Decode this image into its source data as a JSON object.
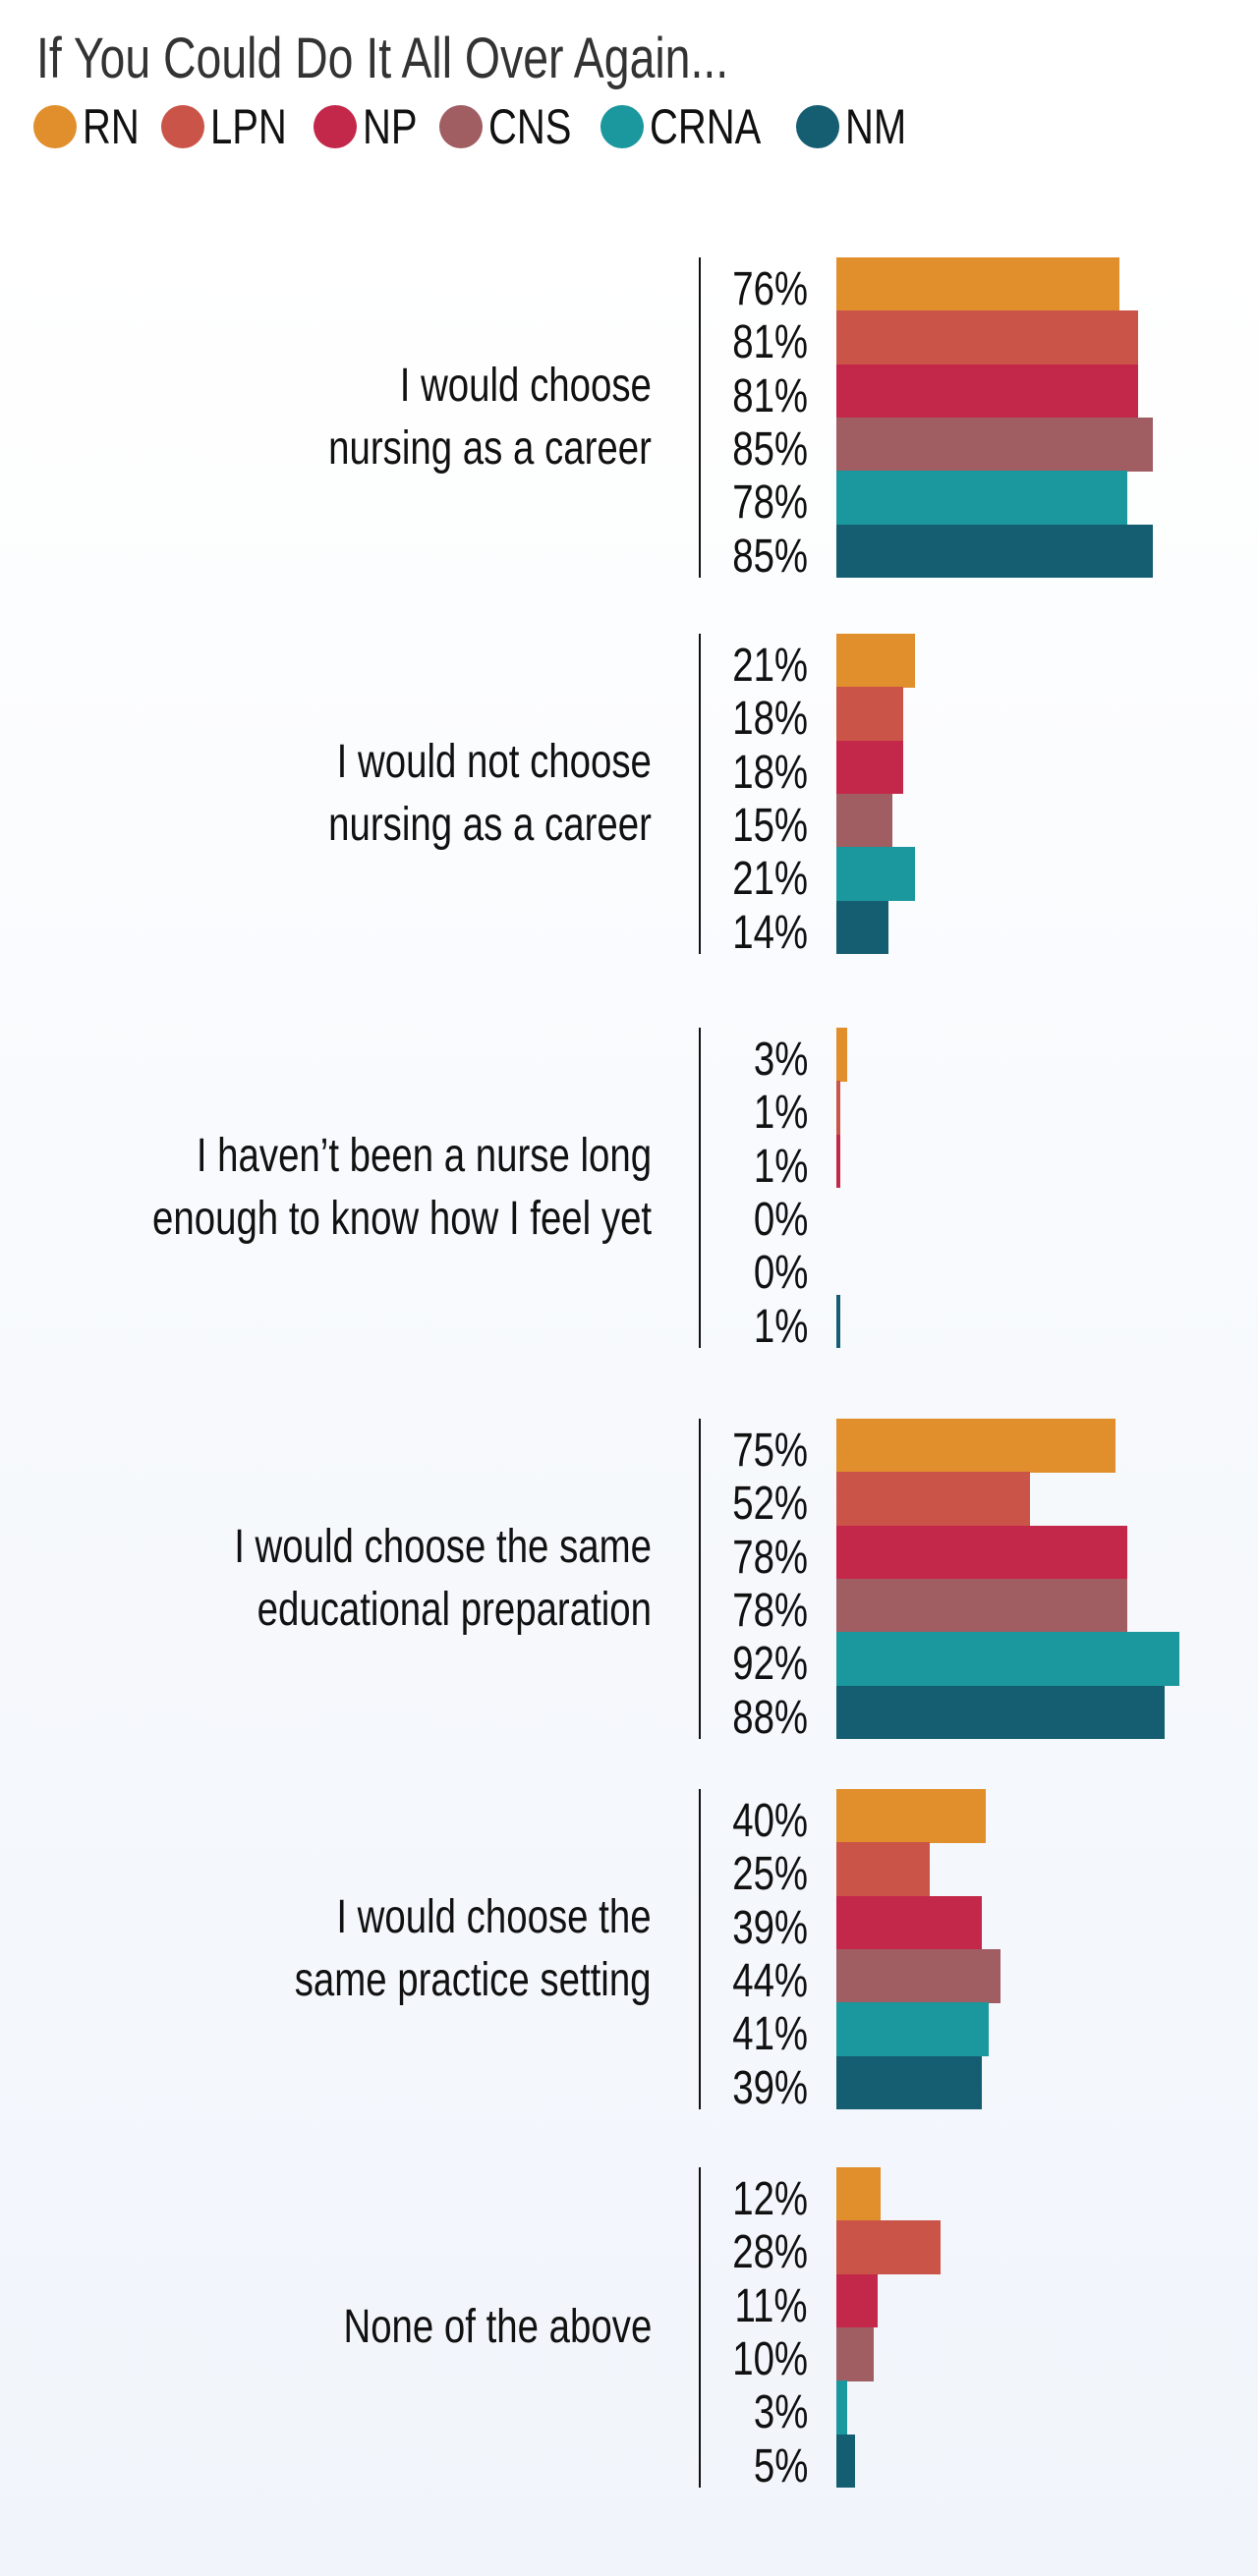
{
  "chart_data": {
    "type": "bar",
    "orientation": "horizontal",
    "title": "If You Could Do It All Over Again...",
    "legend_position": "top-left",
    "grid": false,
    "xlim": [
      0,
      100
    ],
    "series": [
      {
        "name": "RN",
        "color": "#e18f2c",
        "values": [
          76,
          21,
          3,
          75,
          40,
          12
        ]
      },
      {
        "name": "LPN",
        "color": "#cb5449",
        "values": [
          81,
          18,
          1,
          52,
          25,
          28
        ]
      },
      {
        "name": "NP",
        "color": "#c3284b",
        "values": [
          81,
          18,
          1,
          78,
          39,
          11
        ]
      },
      {
        "name": "CNS",
        "color": "#a05e63",
        "values": [
          85,
          15,
          0,
          78,
          44,
          10
        ]
      },
      {
        "name": "CRNA",
        "color": "#1a989e",
        "values": [
          78,
          21,
          0,
          92,
          41,
          3
        ]
      },
      {
        "name": "NM",
        "color": "#155e72",
        "values": [
          85,
          14,
          1,
          88,
          39,
          5
        ]
      }
    ],
    "categories": [
      [
        "I would choose",
        "nursing as a career"
      ],
      [
        "I would not choose",
        "nursing as a career"
      ],
      [
        "I haven’t been a nurse long",
        "enough to know how I feel yet"
      ],
      [
        "I would choose the same",
        "educational preparation"
      ],
      [
        "I would choose the",
        "same practice setting"
      ],
      [
        "None of the above"
      ]
    ],
    "value_suffix": "%"
  }
}
